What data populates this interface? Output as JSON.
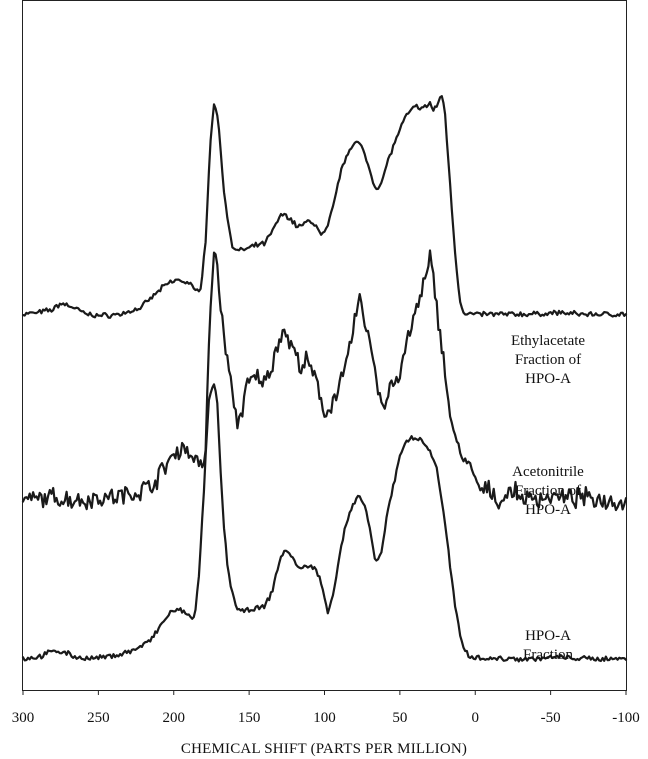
{
  "chart_data": {
    "type": "line",
    "title": "",
    "xlabel": "CHEMICAL SHIFT (PARTS PER MILLION)",
    "ylabel": "",
    "xlim": [
      300,
      -100
    ],
    "x_reversed": true,
    "x_ticks": [
      300,
      250,
      200,
      150,
      100,
      50,
      0,
      -50,
      -100
    ],
    "x_tick_labels": [
      "300",
      "250",
      "200",
      "150",
      "100",
      "50",
      "0",
      "-50",
      "-100"
    ],
    "y_axis_shown": false,
    "grid": false,
    "legend": "none",
    "trace_labels": [
      [
        "Ethylacetate",
        "Fraction of",
        "HPO-A"
      ],
      [
        "Acetonitrile",
        "Fraction of",
        "HPO-A"
      ],
      [
        "HPO-A",
        "Fraction"
      ]
    ],
    "series": [
      {
        "offset": 2.2,
        "label_at": [
          35,
          0.62
        ],
        "noise": 0.012,
        "x": [
          300,
          290,
          280,
          275,
          268,
          258,
          248,
          235,
          222,
          212,
          205,
          198,
          190,
          185,
          182,
          179,
          176,
          173,
          170,
          167,
          164,
          161,
          158,
          155,
          150,
          145,
          140,
          135,
          130,
          126,
          122,
          118,
          114,
          110,
          106,
          102,
          98,
          94,
          90,
          86,
          82,
          78,
          74,
          70,
          66,
          62,
          58,
          54,
          50,
          46,
          42,
          38,
          35,
          32,
          30,
          28,
          25,
          22,
          20,
          18,
          15,
          12,
          10,
          8,
          5,
          0,
          -10,
          -25,
          -40,
          -55,
          -70,
          -85,
          -100
        ],
        "y": [
          0.0,
          0.01,
          0.03,
          0.07,
          0.05,
          0.0,
          -0.01,
          0.0,
          0.04,
          0.13,
          0.19,
          0.22,
          0.2,
          0.14,
          0.18,
          0.45,
          1.05,
          1.38,
          1.18,
          0.82,
          0.58,
          0.44,
          0.4,
          0.41,
          0.42,
          0.44,
          0.45,
          0.52,
          0.62,
          0.64,
          0.6,
          0.56,
          0.57,
          0.6,
          0.57,
          0.5,
          0.55,
          0.7,
          0.88,
          1.0,
          1.08,
          1.1,
          1.04,
          0.92,
          0.8,
          0.84,
          0.98,
          1.08,
          1.18,
          1.26,
          1.31,
          1.33,
          1.31,
          1.33,
          1.35,
          1.3,
          1.34,
          1.4,
          1.28,
          1.0,
          0.6,
          0.25,
          0.08,
          0.02,
          0.0,
          0.0,
          0.0,
          0.0,
          0.0,
          0.01,
          0.0,
          0.0,
          0.0
        ]
      },
      {
        "offset": 1.0,
        "label_at": [
          35,
          0.62
        ],
        "noise": 0.045,
        "x": [
          300,
          290,
          280,
          270,
          260,
          250,
          240,
          230,
          220,
          212,
          206,
          203,
          200,
          197,
          194,
          191,
          188,
          185,
          182,
          179,
          176,
          173,
          170,
          167,
          164,
          161,
          158,
          155,
          152,
          148,
          144,
          140,
          136,
          132,
          128,
          124,
          120,
          116,
          112,
          108,
          104,
          100,
          96,
          92,
          88,
          84,
          80,
          76,
          72,
          68,
          64,
          60,
          56,
          52,
          48,
          44,
          40,
          36,
          32,
          30,
          28,
          25,
          22,
          19,
          16,
          13,
          10,
          6,
          3,
          0,
          -5,
          -10,
          -15,
          -20,
          -25,
          -30,
          -40,
          -50,
          -60,
          -70,
          -80,
          -90,
          -100
        ],
        "y": [
          0.0,
          0.02,
          0.03,
          0.02,
          0.01,
          0.03,
          0.03,
          0.05,
          0.08,
          0.14,
          0.22,
          0.27,
          0.3,
          0.33,
          0.36,
          0.32,
          0.3,
          0.28,
          0.22,
          0.28,
          1.2,
          1.65,
          1.4,
          1.05,
          0.9,
          0.68,
          0.5,
          0.58,
          0.72,
          0.78,
          0.8,
          0.76,
          0.84,
          0.98,
          1.1,
          1.04,
          0.96,
          0.86,
          0.9,
          0.82,
          0.72,
          0.56,
          0.62,
          0.7,
          0.78,
          0.95,
          1.16,
          1.3,
          1.1,
          0.94,
          0.7,
          0.6,
          0.77,
          0.76,
          0.9,
          1.06,
          1.2,
          1.32,
          1.46,
          1.56,
          1.44,
          1.2,
          1.0,
          0.74,
          0.52,
          0.38,
          0.32,
          0.26,
          0.2,
          0.14,
          0.06,
          0.08,
          0.0,
          0.04,
          0.07,
          0.03,
          0.02,
          0.04,
          0.02,
          0.03,
          0.02,
          0.01,
          0.0
        ]
      },
      {
        "offset": 0.0,
        "label_at": [
          35,
          0.62
        ],
        "noise": 0.012,
        "x": [
          300,
          290,
          285,
          278,
          272,
          265,
          255,
          245,
          235,
          225,
          215,
          208,
          202,
          196,
          190,
          186,
          183,
          180,
          177,
          175,
          173,
          171,
          169,
          167,
          164,
          161,
          158,
          155,
          150,
          145,
          140,
          135,
          130,
          126,
          122,
          118,
          114,
          110,
          106,
          102,
          98,
          94,
          90,
          86,
          82,
          78,
          74,
          70,
          66,
          62,
          58,
          54,
          50,
          46,
          42,
          38,
          34,
          30,
          26,
          22,
          18,
          14,
          10,
          7,
          4,
          0,
          -10,
          -25,
          -40,
          -55,
          -70,
          -85,
          -100
        ],
        "y": [
          0.0,
          0.01,
          0.03,
          0.05,
          0.04,
          0.01,
          0.0,
          0.01,
          0.03,
          0.06,
          0.12,
          0.22,
          0.3,
          0.31,
          0.28,
          0.26,
          0.56,
          1.08,
          1.62,
          1.72,
          1.75,
          1.62,
          1.2,
          0.88,
          0.56,
          0.42,
          0.32,
          0.3,
          0.31,
          0.32,
          0.33,
          0.42,
          0.62,
          0.7,
          0.66,
          0.58,
          0.58,
          0.6,
          0.57,
          0.48,
          0.3,
          0.42,
          0.66,
          0.85,
          0.96,
          1.03,
          1.0,
          0.84,
          0.6,
          0.68,
          0.95,
          1.12,
          1.3,
          1.38,
          1.42,
          1.4,
          1.38,
          1.32,
          1.24,
          1.0,
          0.7,
          0.38,
          0.14,
          0.06,
          0.02,
          0.01,
          0.0,
          0.0,
          0.0,
          0.01,
          0.0,
          0.0,
          0.0
        ]
      }
    ]
  }
}
